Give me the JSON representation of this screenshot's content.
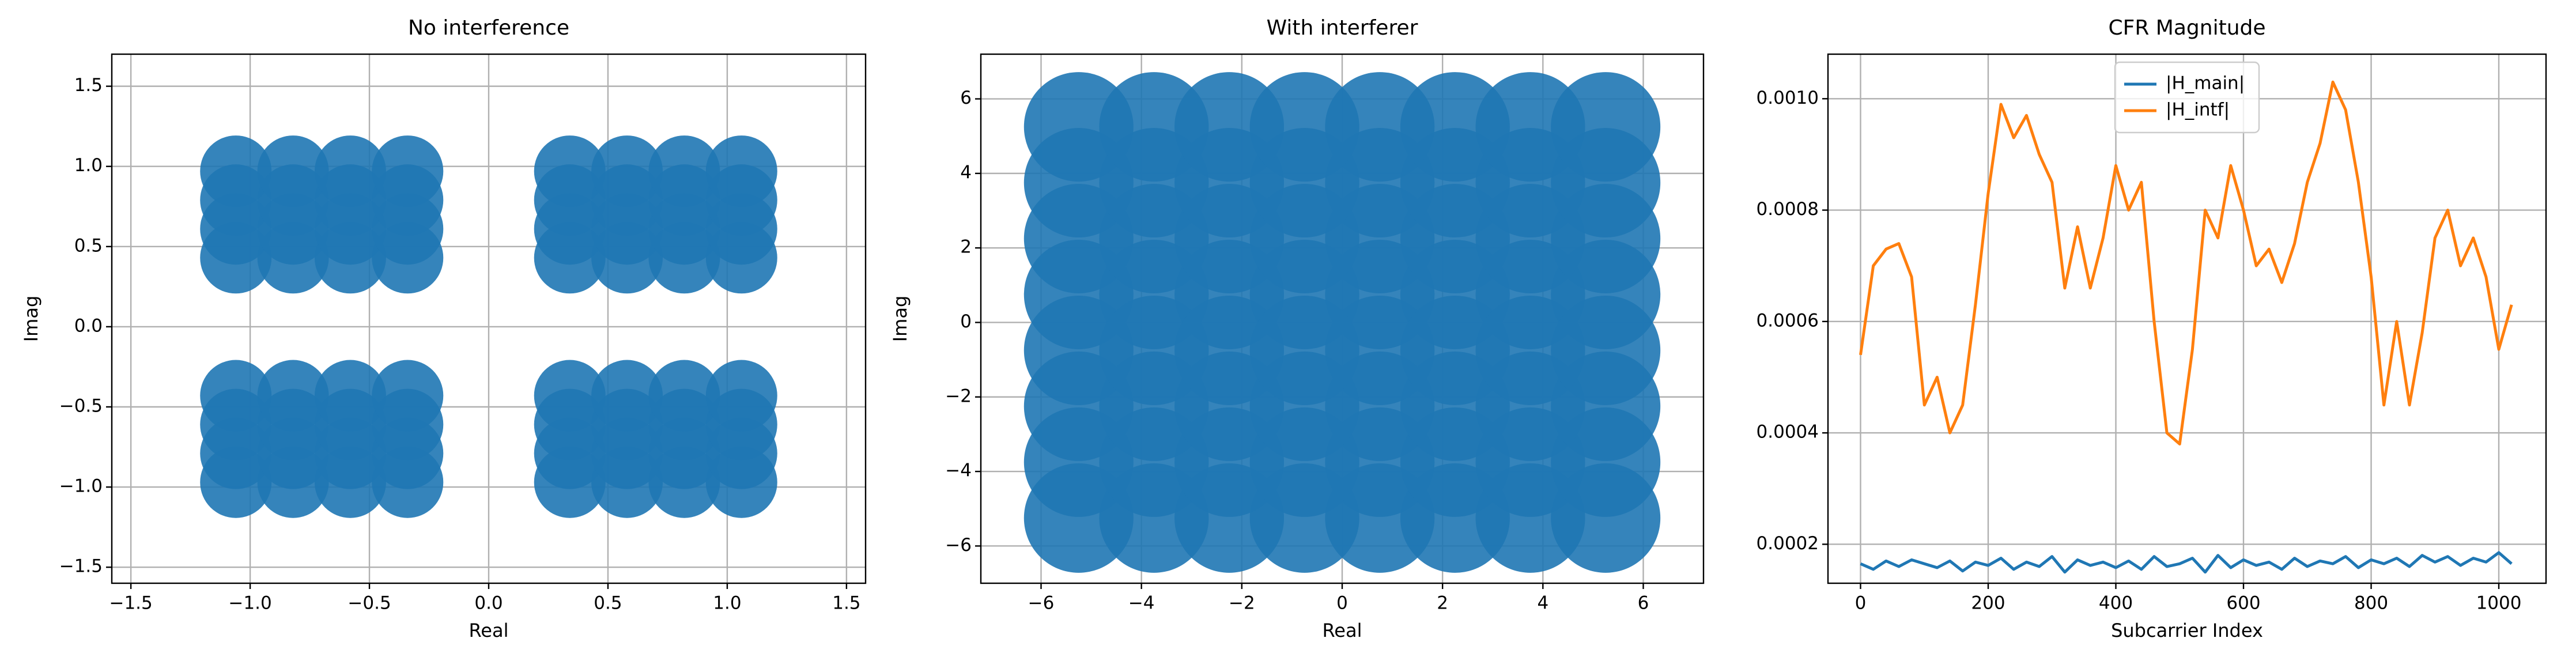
{
  "chart_data": [
    {
      "type": "scatter",
      "title": "No interference",
      "xlabel": "Real",
      "ylabel": "Imag",
      "xlim": [
        -1.58,
        1.58
      ],
      "ylim": [
        -1.6,
        1.7
      ],
      "xticks": [
        {
          "value": -1.5,
          "label": "−1.5"
        },
        {
          "value": -1,
          "label": "−1.0"
        },
        {
          "value": -0.5,
          "label": "−0.5"
        },
        {
          "value": 0,
          "label": "0.0"
        },
        0.5,
        {
          "value": 1,
          "label": "1.0"
        },
        1.5
      ],
      "yticks": [
        {
          "value": -1.5,
          "label": "−1.5"
        },
        {
          "value": -1,
          "label": "−1.0"
        },
        {
          "value": -0.5,
          "label": "−0.5"
        },
        {
          "value": 0,
          "label": "0.0"
        },
        0.5,
        {
          "value": 1,
          "label": "1.0"
        },
        1.5
      ],
      "grid": true,
      "series": [
        {
          "color": "#1f77b4",
          "x": [
            0.34,
            0.58,
            0.82,
            1.06,
            0.34,
            0.58,
            0.82,
            1.06,
            0.34,
            0.58,
            0.82,
            1.06,
            0.34,
            0.58,
            0.82,
            1.06,
            -1.06,
            -0.82,
            -0.58,
            -0.34,
            -1.06,
            -0.82,
            -0.58,
            -0.34,
            -1.06,
            -0.82,
            -0.58,
            -0.34,
            -1.06,
            -0.82,
            -0.58,
            -0.34,
            0.34,
            0.58,
            0.82,
            1.06,
            0.34,
            0.58,
            0.82,
            1.06,
            0.34,
            0.58,
            0.82,
            1.06,
            0.34,
            0.58,
            0.82,
            1.06,
            -1.06,
            -0.82,
            -0.58,
            -0.34,
            -1.06,
            -0.82,
            -0.58,
            -0.34,
            -1.06,
            -0.82,
            -0.58,
            -0.34,
            -1.06,
            -0.82,
            -0.58,
            -0.34
          ],
          "values": [
            0.43,
            0.43,
            0.43,
            0.43,
            0.61,
            0.61,
            0.61,
            0.61,
            0.79,
            0.79,
            0.79,
            0.79,
            0.97,
            0.97,
            0.97,
            0.97,
            0.43,
            0.43,
            0.43,
            0.43,
            0.61,
            0.61,
            0.61,
            0.61,
            0.79,
            0.79,
            0.79,
            0.79,
            0.97,
            0.97,
            0.97,
            0.97,
            -0.97,
            -0.97,
            -0.97,
            -0.97,
            -0.79,
            -0.79,
            -0.79,
            -0.79,
            -0.61,
            -0.61,
            -0.61,
            -0.61,
            -0.43,
            -0.43,
            -0.43,
            -0.43,
            -0.97,
            -0.97,
            -0.97,
            -0.97,
            -0.79,
            -0.79,
            -0.79,
            -0.79,
            -0.61,
            -0.61,
            -0.61,
            -0.61,
            -0.43,
            -0.43,
            -0.43,
            -0.43
          ]
        }
      ]
    },
    {
      "type": "scatter",
      "title": "With interferer",
      "xlabel": "Real",
      "ylabel": "Imag",
      "xlim": [
        -7.2,
        7.2
      ],
      "ylim": [
        -7.0,
        7.2
      ],
      "xticks": [
        {
          "value": -6,
          "label": "−6"
        },
        {
          "value": -4,
          "label": "−4"
        },
        {
          "value": -2,
          "label": "−2"
        },
        0,
        2,
        4,
        6
      ],
      "yticks": [
        {
          "value": -6,
          "label": "−6"
        },
        {
          "value": -4,
          "label": "−4"
        },
        {
          "value": -2,
          "label": "−2"
        },
        0,
        2,
        4,
        6
      ],
      "grid": true,
      "series": [
        {
          "color": "#1f77b4",
          "x": [
            0.75,
            2.25,
            3.75,
            5.25,
            0.75,
            2.25,
            3.75,
            5.25,
            0.75,
            2.25,
            3.75,
            5.25,
            0.75,
            2.25,
            3.75,
            5.25,
            -5.25,
            -3.75,
            -2.25,
            -0.75,
            -5.25,
            -3.75,
            -2.25,
            -0.75,
            -5.25,
            -3.75,
            -2.25,
            -0.75,
            -5.25,
            -3.75,
            -2.25,
            -0.75,
            0.75,
            2.25,
            3.75,
            5.25,
            0.75,
            2.25,
            3.75,
            5.25,
            0.75,
            2.25,
            3.75,
            5.25,
            0.75,
            2.25,
            3.75,
            5.25,
            -5.25,
            -3.75,
            -2.25,
            -0.75,
            -5.25,
            -3.75,
            -2.25,
            -0.75,
            -5.25,
            -3.75,
            -2.25,
            -0.75,
            -5.25,
            -3.75,
            -2.25,
            -0.75
          ],
          "values": [
            0.75,
            0.75,
            0.75,
            0.75,
            2.25,
            2.25,
            2.25,
            2.25,
            3.75,
            3.75,
            3.75,
            3.75,
            5.25,
            5.25,
            5.25,
            5.25,
            0.75,
            0.75,
            0.75,
            0.75,
            2.25,
            2.25,
            2.25,
            2.25,
            3.75,
            3.75,
            3.75,
            3.75,
            5.25,
            5.25,
            5.25,
            5.25,
            -5.25,
            -5.25,
            -5.25,
            -5.25,
            -3.75,
            -3.75,
            -3.75,
            -3.75,
            -2.25,
            -2.25,
            -2.25,
            -2.25,
            -0.75,
            -0.75,
            -0.75,
            -0.75,
            -5.25,
            -5.25,
            -5.25,
            -5.25,
            -3.75,
            -3.75,
            -3.75,
            -3.75,
            -2.25,
            -2.25,
            -2.25,
            -2.25,
            -0.75,
            -0.75,
            -0.75,
            -0.75
          ]
        }
      ]
    },
    {
      "type": "line",
      "title": "CFR Magnitude",
      "xlabel": "Subcarrier Index",
      "xlim": [
        -51,
        1074
      ],
      "ylim": [
        0.00013,
        0.00108
      ],
      "xticks": [
        0,
        200,
        400,
        600,
        800,
        1000
      ],
      "yticks": [
        0.0002,
        0.0004,
        0.0006,
        0.0008,
        {
          "value": 0.001,
          "label": "0.0010"
        }
      ],
      "grid": true,
      "legend": "upper center",
      "x": [
        0,
        20,
        40,
        60,
        80,
        100,
        120,
        140,
        160,
        180,
        200,
        220,
        240,
        260,
        280,
        300,
        320,
        340,
        360,
        380,
        400,
        420,
        440,
        460,
        480,
        500,
        520,
        540,
        560,
        580,
        600,
        620,
        640,
        660,
        680,
        700,
        720,
        740,
        760,
        780,
        800,
        820,
        840,
        860,
        880,
        900,
        920,
        940,
        960,
        980,
        1000,
        1020
      ],
      "series": [
        {
          "name": "|H_main|",
          "color": "#1f77b4",
          "values": [
            0.000165,
            0.000155,
            0.00017,
            0.00016,
            0.000172,
            0.000165,
            0.000158,
            0.00017,
            0.000152,
            0.000168,
            0.000162,
            0.000175,
            0.000155,
            0.000168,
            0.00016,
            0.000178,
            0.00015,
            0.000172,
            0.000162,
            0.000168,
            0.000158,
            0.00017,
            0.000155,
            0.000178,
            0.00016,
            0.000165,
            0.000175,
            0.00015,
            0.00018,
            0.000158,
            0.000172,
            0.000162,
            0.000168,
            0.000155,
            0.000175,
            0.00016,
            0.00017,
            0.000165,
            0.000178,
            0.000158,
            0.000172,
            0.000165,
            0.000175,
            0.00016,
            0.00018,
            0.000168,
            0.000178,
            0.000162,
            0.000175,
            0.000168,
            0.000185,
            0.000165
          ]
        },
        {
          "name": "|H_intf|",
          "color": "#ff7f0e",
          "values": [
            0.00054,
            0.0007,
            0.00073,
            0.00074,
            0.00068,
            0.00045,
            0.0005,
            0.0004,
            0.00045,
            0.00063,
            0.00083,
            0.00099,
            0.00093,
            0.00097,
            0.0009,
            0.00085,
            0.00066,
            0.00077,
            0.00066,
            0.00075,
            0.00088,
            0.0008,
            0.00085,
            0.0006,
            0.0004,
            0.00038,
            0.00055,
            0.0008,
            0.00075,
            0.00088,
            0.0008,
            0.0007,
            0.00073,
            0.00067,
            0.00074,
            0.00085,
            0.00092,
            0.00103,
            0.00098,
            0.00085,
            0.00068,
            0.00045,
            0.0006,
            0.00045,
            0.00058,
            0.00075,
            0.0008,
            0.0007,
            0.00075,
            0.00068,
            0.00055,
            0.00063
          ]
        }
      ]
    }
  ]
}
